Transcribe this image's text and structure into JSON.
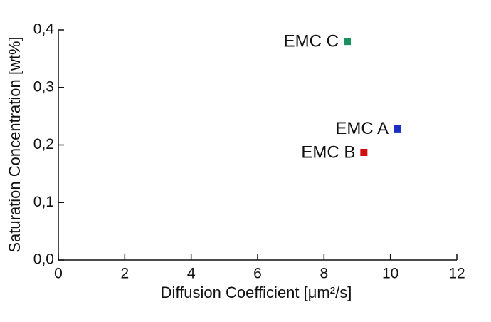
{
  "chart_data": {
    "type": "scatter",
    "x_label": "Diffusion Coefficient [μm²/s]",
    "y_label": "Saturation Concentration [wt%]",
    "xlim": [
      0,
      12
    ],
    "xticks": [
      0,
      2,
      4,
      6,
      8,
      10,
      12
    ],
    "ylim": [
      0,
      0.4
    ],
    "yticks": [
      {
        "value": 0,
        "label": "0,0"
      },
      {
        "value": 0.1,
        "label": "0,1"
      },
      {
        "value": 0.2,
        "label": "0,2"
      },
      {
        "value": 0.3,
        "label": "0,3"
      },
      {
        "value": 0.4,
        "label": "0,4"
      }
    ],
    "series": [
      {
        "name": "EMC A",
        "color": "#1a2fbf",
        "x": [
          10.2
        ],
        "values": [
          0.228
        ]
      },
      {
        "name": "EMC B",
        "color": "#d01010",
        "x": [
          9.2
        ],
        "values": [
          0.187
        ]
      },
      {
        "name": "EMC C",
        "color": "#1a9060",
        "x": [
          8.7
        ],
        "values": [
          0.38
        ]
      }
    ]
  }
}
